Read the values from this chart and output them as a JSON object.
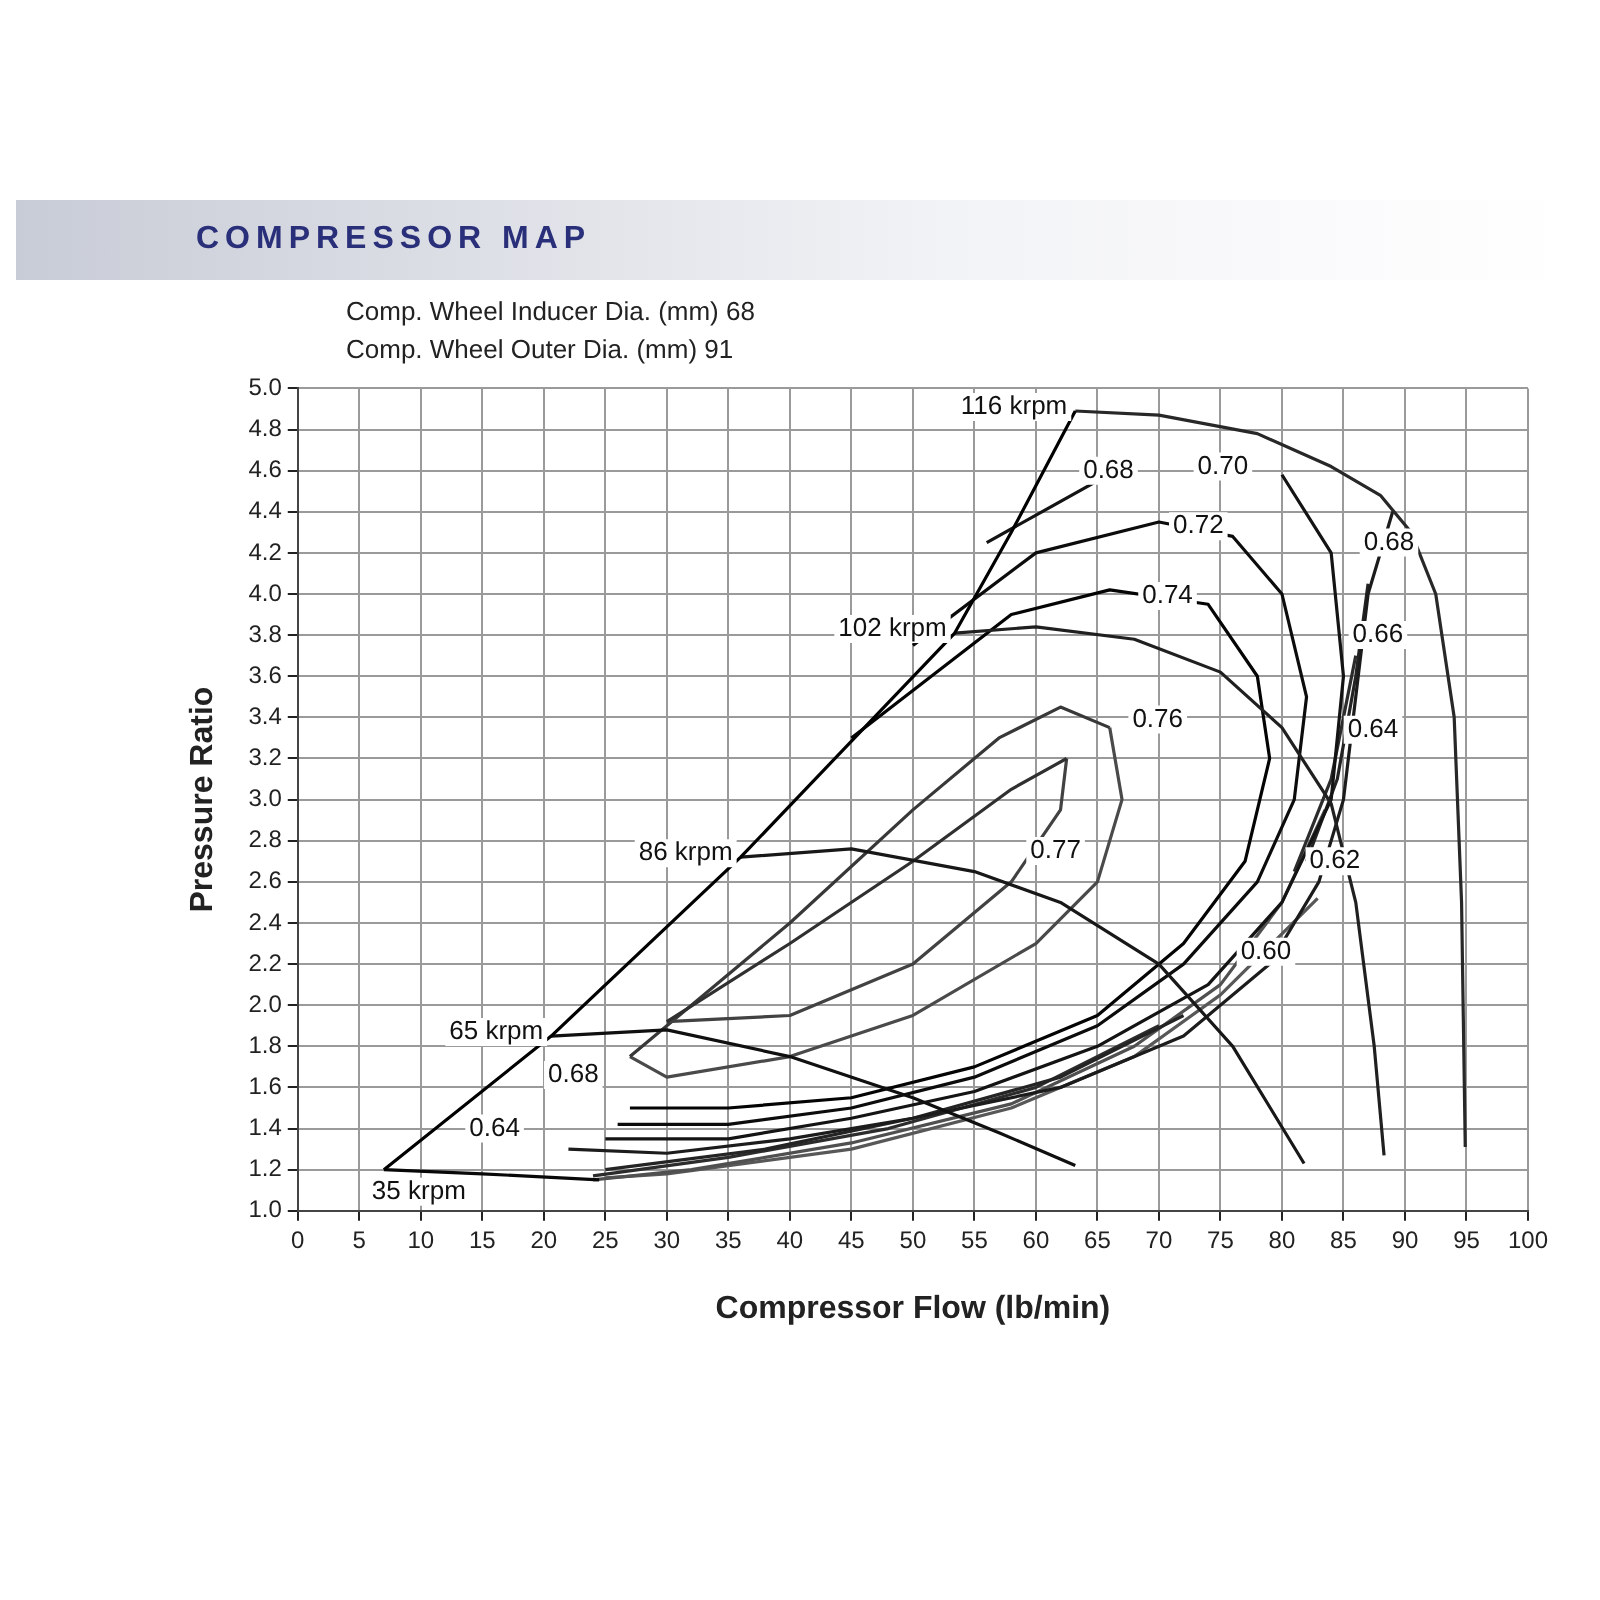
{
  "chart_data": {
    "type": "line",
    "title": "COMPRESSOR MAP",
    "xlabel": "Compressor Flow (lb/min)",
    "ylabel": "Pressure Ratio",
    "xlim": [
      0,
      100
    ],
    "xticks": [
      0,
      5,
      10,
      15,
      20,
      25,
      30,
      35,
      40,
      45,
      50,
      55,
      60,
      65,
      70,
      75,
      80,
      85,
      90,
      95,
      100
    ],
    "ylim": [
      1,
      5
    ],
    "yticks": [
      {
        "value": 1,
        "label": "1.0"
      },
      1.2,
      1.4,
      1.6,
      1.8,
      {
        "value": 2,
        "label": "2.0"
      },
      2.2,
      2.4,
      2.6,
      2.8,
      {
        "value": 3,
        "label": "3.0"
      },
      3.2,
      3.4,
      3.6,
      3.8,
      {
        "value": 4,
        "label": "4.0"
      },
      4.2,
      4.4,
      4.6,
      4.8,
      {
        "value": 5,
        "label": "5.0"
      }
    ],
    "grid": true,
    "legend": false,
    "marker": "none",
    "line_style": "solid",
    "series": [
      {
        "color": "#000000",
        "x": [
          7,
          20.6,
          36,
          53.4,
          58,
          63.2
        ],
        "values": [
          1.2,
          1.85,
          2.72,
          3.81,
          4.3,
          4.89
        ]
      },
      {
        "color": "#080808",
        "x": [
          7,
          15,
          24.5
        ],
        "values": [
          1.2,
          1.18,
          1.15
        ]
      },
      {
        "color": "#101010",
        "x": [
          20.6,
          30,
          40,
          50,
          57,
          63.2
        ],
        "values": [
          1.85,
          1.88,
          1.75,
          1.55,
          1.38,
          1.22
        ]
      },
      {
        "color": "#181818",
        "x": [
          36,
          45,
          55,
          62,
          70,
          76,
          81.8
        ],
        "values": [
          2.72,
          2.76,
          2.65,
          2.5,
          2.2,
          1.8,
          1.23
        ]
      },
      {
        "color": "#202020",
        "x": [
          53.4,
          60,
          68,
          75,
          80,
          84,
          86,
          87.5,
          88.3
        ],
        "values": [
          3.81,
          3.84,
          3.78,
          3.62,
          3.35,
          2.98,
          2.5,
          1.8,
          1.27
        ]
      },
      {
        "color": "#282828",
        "x": [
          63.2,
          70,
          78,
          84,
          88,
          90.5,
          92.5,
          94,
          94.6,
          94.9
        ],
        "values": [
          4.89,
          4.87,
          4.78,
          4.62,
          4.48,
          4.3,
          4.0,
          3.4,
          2.5,
          1.31
        ]
      },
      {
        "color": "#303030",
        "x": [
          30,
          40,
          50,
          58,
          62.5
        ],
        "values": [
          1.92,
          2.3,
          2.7,
          3.05,
          3.2
        ]
      },
      {
        "color": "#424242",
        "x": [
          62.5,
          62,
          58,
          50,
          40,
          30
        ],
        "values": [
          3.2,
          2.95,
          2.6,
          2.2,
          1.95,
          1.92
        ]
      },
      {
        "color": "#383838",
        "x": [
          27,
          40,
          50,
          57,
          62,
          66
        ],
        "values": [
          1.75,
          2.4,
          2.95,
          3.3,
          3.45,
          3.35
        ]
      },
      {
        "color": "#4a4a4a",
        "x": [
          66,
          67,
          65,
          60,
          50,
          40,
          30,
          27
        ],
        "values": [
          3.35,
          3.0,
          2.6,
          2.3,
          1.95,
          1.75,
          1.65,
          1.75
        ]
      },
      {
        "color": "#040404",
        "x": [
          45,
          58,
          66,
          74,
          78,
          79,
          77,
          72,
          65,
          55,
          45,
          35,
          27
        ],
        "values": [
          3.3,
          3.9,
          4.02,
          3.95,
          3.6,
          3.2,
          2.7,
          2.3,
          1.95,
          1.7,
          1.55,
          1.5,
          1.5
        ]
      },
      {
        "color": "#0c0c0c",
        "x": [
          50,
          60,
          70,
          76,
          80,
          82,
          81,
          78,
          72,
          65,
          55,
          45,
          35,
          26
        ],
        "values": [
          3.75,
          4.2,
          4.35,
          4.28,
          4.0,
          3.5,
          3.0,
          2.6,
          2.2,
          1.9,
          1.65,
          1.5,
          1.42,
          1.42
        ]
      },
      {
        "color": "#141414",
        "x": [
          56,
          65,
          75,
          80,
          84,
          85,
          84,
          80,
          74,
          65,
          55,
          45,
          35,
          25
        ],
        "values": [
          4.25,
          4.55,
          null,
          4.58,
          4.2,
          3.6,
          3.0,
          2.5,
          2.1,
          1.8,
          1.58,
          1.45,
          1.35,
          1.35
        ]
      },
      {
        "color": "#1c1c1c",
        "x": [
          89,
          87,
          86,
          85,
          83,
          79,
          72,
          62,
          50,
          40,
          30,
          22
        ],
        "values": [
          4.4,
          4.0,
          3.5,
          3.0,
          2.6,
          2.2,
          1.85,
          1.6,
          1.45,
          1.35,
          1.28,
          1.3
        ]
      },
      {
        "color": "#242424",
        "x": [
          87,
          86,
          84.5,
          82,
          78,
          72,
          62,
          50,
          38,
          25
        ],
        "values": [
          4.05,
          3.6,
          3.1,
          2.7,
          null,
          1.95,
          1.65,
          1.45,
          1.3,
          1.2
        ]
      },
      {
        "color": "#2c2c2c",
        "x": [
          86,
          84,
          81,
          77,
          70,
          60,
          48,
          35,
          24
        ],
        "values": [
          3.7,
          3.1,
          2.65,
          null,
          1.9,
          1.6,
          1.4,
          1.26,
          1.17
        ]
      },
      {
        "color": "#505050",
        "x": [
          83.5,
          80,
          75,
          68,
          58,
          45,
          32,
          24
        ],
        "values": [
          2.95,
          2.5,
          2.1,
          1.8,
          1.52,
          1.33,
          1.2,
          1.15
        ]
      },
      {
        "color": "#585858",
        "x": [
          82.9,
          75,
          68,
          58,
          45,
          30,
          25
        ],
        "values": [
          2.52,
          2.05,
          1.75,
          1.5,
          1.3,
          1.18,
          1.16
        ]
      }
    ],
    "annotations": [
      "Comp. Wheel Inducer Dia. (mm) 68",
      "Comp. Wheel Outer Dia. (mm) 91",
      {
        "text": "116 krpm",
        "x": 63.2,
        "y": 4.89
      },
      {
        "text": "102 krpm",
        "x": 53.4,
        "y": 3.81
      },
      {
        "text": "86 krpm",
        "x": 36,
        "y": 2.72
      },
      {
        "text": "65 krpm",
        "x": 20.6,
        "y": 1.85
      },
      {
        "text": "35 krpm",
        "x": 7,
        "y": 1.2
      },
      {
        "text": "0.68",
        "x": 65.9,
        "y": 4.6
      },
      {
        "text": "0.70",
        "x": 75.2,
        "y": 4.62
      },
      {
        "text": "0.72",
        "x": 73.2,
        "y": 4.33
      },
      {
        "text": "0.74",
        "x": 70.7,
        "y": 3.99
      },
      {
        "text": "0.76",
        "x": 69.9,
        "y": 3.39
      },
      {
        "text": "0.77",
        "x": 61.6,
        "y": 2.75
      },
      {
        "text": "0.68",
        "x": 88.7,
        "y": 4.25
      },
      {
        "text": "0.66",
        "x": 87.8,
        "y": 3.8
      },
      {
        "text": "0.64",
        "x": 87.4,
        "y": 3.34
      },
      {
        "text": "0.62",
        "x": 84.3,
        "y": 2.7
      },
      {
        "text": "0.60",
        "x": 78.7,
        "y": 2.26
      },
      {
        "text": "0.68",
        "x": 22.4,
        "y": 1.66
      },
      {
        "text": "0.64",
        "x": 16.0,
        "y": 1.4
      }
    ]
  }
}
